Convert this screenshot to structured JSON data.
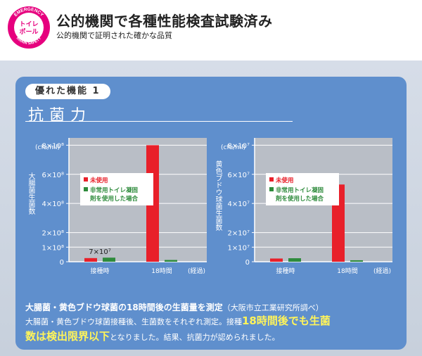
{
  "header": {
    "badge_top": "EMERGENCY",
    "badge_bottom": "BRAIN SAFETY",
    "badge_center_line1": "トイレ",
    "badge_center_line2": "ポール",
    "title": "公的機関で各種性能検査試験済み",
    "subtitle": "公的機関で証明された確かな品質"
  },
  "feature": {
    "tag": "優れた機能 1",
    "name": "抗菌力"
  },
  "legend": {
    "unused": "未使用",
    "used_line1": "非常用トイレ凝固",
    "used_line2": "剤を使用した場合"
  },
  "colors": {
    "unused": "#e8202a",
    "used": "#2e8b3c",
    "panel": "#5f8fcd",
    "highlight": "#fff45a"
  },
  "chart_data": [
    {
      "type": "bar",
      "unit": "(cfu/ml)",
      "ylabel": "大腸菌生菌数",
      "xlabel": "(経過)",
      "categories": [
        "接種時",
        "18時間"
      ],
      "y_ticks": [
        "0",
        "1×10⁸",
        "2×10⁸",
        "4×10⁸",
        "6×10⁸",
        "8×10⁸"
      ],
      "y_tick_values": [
        0,
        1,
        2,
        4,
        6,
        8
      ],
      "ylim": [
        0,
        8.5
      ],
      "annotation": "7×10⁷",
      "series": [
        {
          "name": "未使用",
          "values": [
            0.25,
            8.0
          ]
        },
        {
          "name": "非常用トイレ凝固剤を使用した場合",
          "values": [
            0.28,
            0.12
          ]
        }
      ]
    },
    {
      "type": "bar",
      "unit": "(cfu/ml)",
      "ylabel": "黄色ブドウ球菌生菌数",
      "xlabel": "(経過)",
      "categories": [
        "接種時",
        "18時間"
      ],
      "y_ticks": [
        "0",
        "1×10⁷",
        "2×10⁷",
        "4×10⁷",
        "6×10⁷",
        "8×10⁷"
      ],
      "y_tick_values": [
        0,
        1,
        2,
        4,
        6,
        8
      ],
      "ylim": [
        0,
        8.5
      ],
      "annotation": "",
      "series": [
        {
          "name": "未使用",
          "values": [
            0.22,
            5.3
          ]
        },
        {
          "name": "非常用トイレ凝固剤を使用した場合",
          "values": [
            0.24,
            0.1
          ]
        }
      ]
    }
  ],
  "footer": {
    "heading": "大腸菌・黄色ブドウ球菌の18時間後の生菌量を測定",
    "source": "（大阪市立工業研究所調べ）",
    "body_1": "大腸菌・黄色ブドウ球菌接種後、生菌数をそれぞれ測定。接種",
    "highlight_1": "18時間後でも生菌",
    "highlight_2": "数は検出限界以下",
    "body_2": "となりました。結果、抗菌力が認められました。"
  }
}
